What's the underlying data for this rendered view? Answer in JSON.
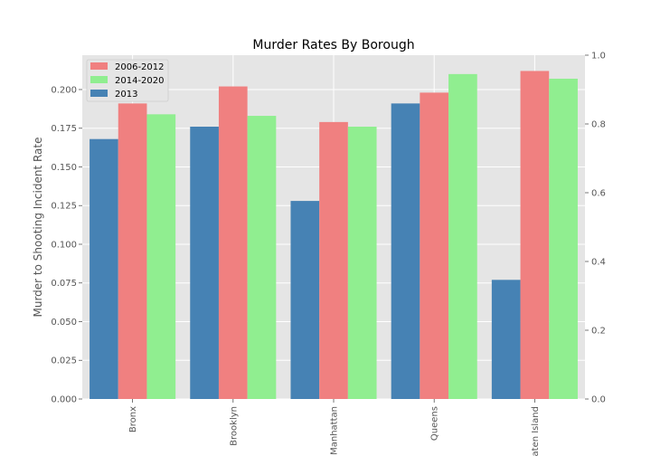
{
  "chart_data": {
    "type": "bar",
    "title": "Murder Rates By Borough",
    "xlabel": "",
    "ylabel": "Murder to Shooting Incident Rate",
    "categories": [
      "Bronx",
      "Brooklyn",
      "Manhattan",
      "Queens",
      "Staten Island"
    ],
    "series": [
      {
        "name": "2013",
        "color": "#4682b4",
        "values": [
          0.168,
          0.176,
          0.128,
          0.191,
          0.077
        ]
      },
      {
        "name": "2006-2012",
        "color": "#f08080",
        "values": [
          0.191,
          0.202,
          0.179,
          0.198,
          0.212
        ]
      },
      {
        "name": "2014-2020",
        "color": "#90ee90",
        "values": [
          0.184,
          0.183,
          0.176,
          0.21,
          0.207
        ]
      }
    ],
    "ylim": [
      0,
      0.2222
    ],
    "yticks": [
      "0.000",
      "0.025",
      "0.050",
      "0.075",
      "0.100",
      "0.125",
      "0.150",
      "0.175",
      "0.200"
    ],
    "y2lim": [
      0,
      1.0
    ],
    "y2ticks": [
      "0.0",
      "0.2",
      "0.4",
      "0.6",
      "0.8",
      "1.0"
    ],
    "grid": true,
    "legend_position": "top-left",
    "legend_order": [
      "2006-2012",
      "2014-2020",
      "2013"
    ],
    "background": "#e5e5e5"
  }
}
